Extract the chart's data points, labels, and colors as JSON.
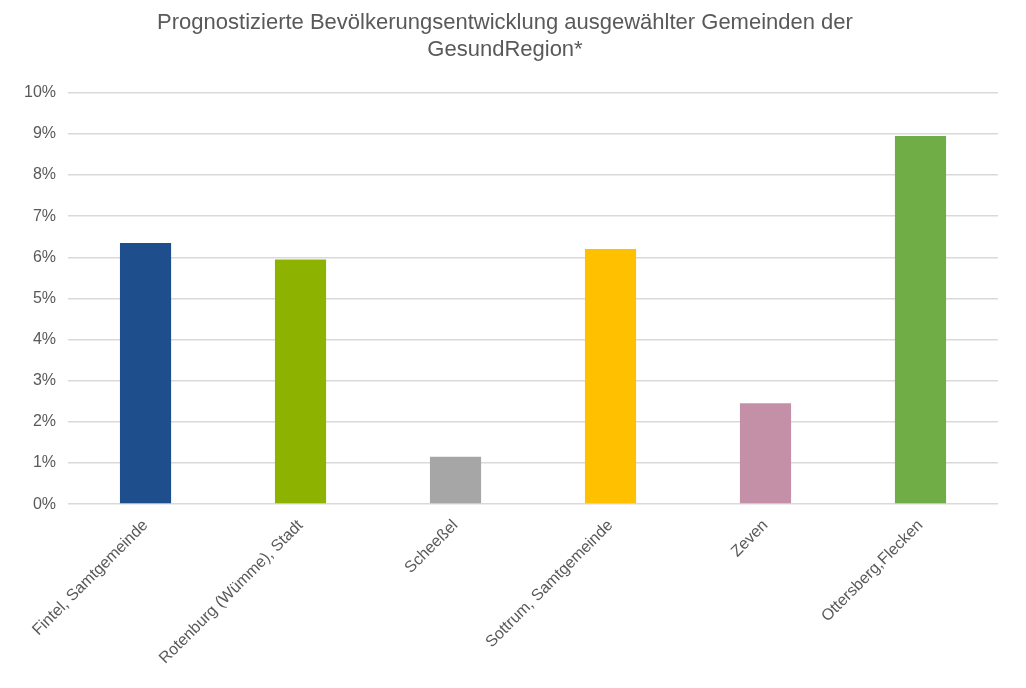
{
  "chart_data": {
    "type": "bar",
    "title": "Prognostizierte Bevölkerungsentwicklung ausgewählter Gemeinden der GesundRegion*",
    "categories": [
      "Fintel, Samtgemeinde",
      "Rotenburg (Wümme), Stadt",
      "Scheeßel",
      "Sottrum, Samtgemeinde",
      "Zeven",
      "Ottersberg,Flecken"
    ],
    "values": [
      6.35,
      5.95,
      1.15,
      6.2,
      2.45,
      8.95
    ],
    "colors": [
      "#1f4e8c",
      "#8db300",
      "#a6a6a6",
      "#ffc000",
      "#c490a8",
      "#70ad47"
    ],
    "ylim": [
      0,
      10
    ],
    "yticks": [
      {
        "value": 0,
        "label": "0%"
      },
      {
        "value": 1,
        "label": "1%"
      },
      {
        "value": 2,
        "label": "2%"
      },
      {
        "value": 3,
        "label": "3%"
      },
      {
        "value": 4,
        "label": "4%"
      },
      {
        "value": 5,
        "label": "5%"
      },
      {
        "value": 6,
        "label": "6%"
      },
      {
        "value": 7,
        "label": "7%"
      },
      {
        "value": 8,
        "label": "8%"
      },
      {
        "value": 9,
        "label": "9%"
      },
      {
        "value": 10,
        "label": "10%"
      }
    ],
    "grid": "y",
    "legend": false
  }
}
